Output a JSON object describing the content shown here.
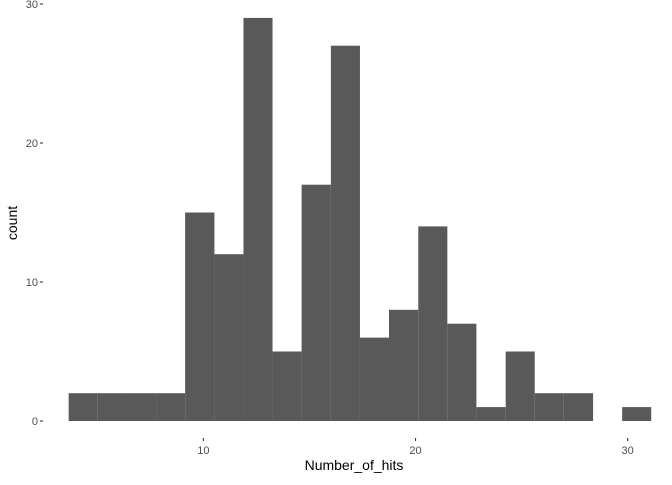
{
  "chart_data": {
    "type": "bar",
    "subtype": "histogram",
    "xlabel": "Number_of_hits",
    "ylabel": "count",
    "xlim": [
      3.1,
      31.1
    ],
    "ylim": [
      0,
      30
    ],
    "x_ticks": [
      10,
      20,
      30
    ],
    "y_ticks": [
      0,
      10,
      20,
      30
    ],
    "grid": false,
    "legend": "none",
    "bar_color": "#595959",
    "bins": [
      {
        "x0": 3.65,
        "x1": 5.02,
        "count": 2
      },
      {
        "x0": 5.02,
        "x1": 6.4,
        "count": 2
      },
      {
        "x0": 6.4,
        "x1": 7.77,
        "count": 2
      },
      {
        "x0": 7.77,
        "x1": 9.14,
        "count": 2
      },
      {
        "x0": 9.14,
        "x1": 10.52,
        "count": 15
      },
      {
        "x0": 10.52,
        "x1": 11.89,
        "count": 12
      },
      {
        "x0": 11.89,
        "x1": 13.26,
        "count": 29
      },
      {
        "x0": 13.26,
        "x1": 14.63,
        "count": 5
      },
      {
        "x0": 14.63,
        "x1": 16.01,
        "count": 17
      },
      {
        "x0": 16.01,
        "x1": 17.38,
        "count": 27
      },
      {
        "x0": 17.38,
        "x1": 18.75,
        "count": 6
      },
      {
        "x0": 18.75,
        "x1": 20.13,
        "count": 8
      },
      {
        "x0": 20.13,
        "x1": 21.5,
        "count": 14
      },
      {
        "x0": 21.5,
        "x1": 22.87,
        "count": 7
      },
      {
        "x0": 22.87,
        "x1": 24.25,
        "count": 1
      },
      {
        "x0": 24.25,
        "x1": 25.62,
        "count": 5
      },
      {
        "x0": 25.62,
        "x1": 26.99,
        "count": 2
      },
      {
        "x0": 26.99,
        "x1": 28.37,
        "count": 2
      },
      {
        "x0": 28.37,
        "x1": 29.74,
        "count": 0
      },
      {
        "x0": 29.74,
        "x1": 31.11,
        "count": 1
      }
    ]
  }
}
